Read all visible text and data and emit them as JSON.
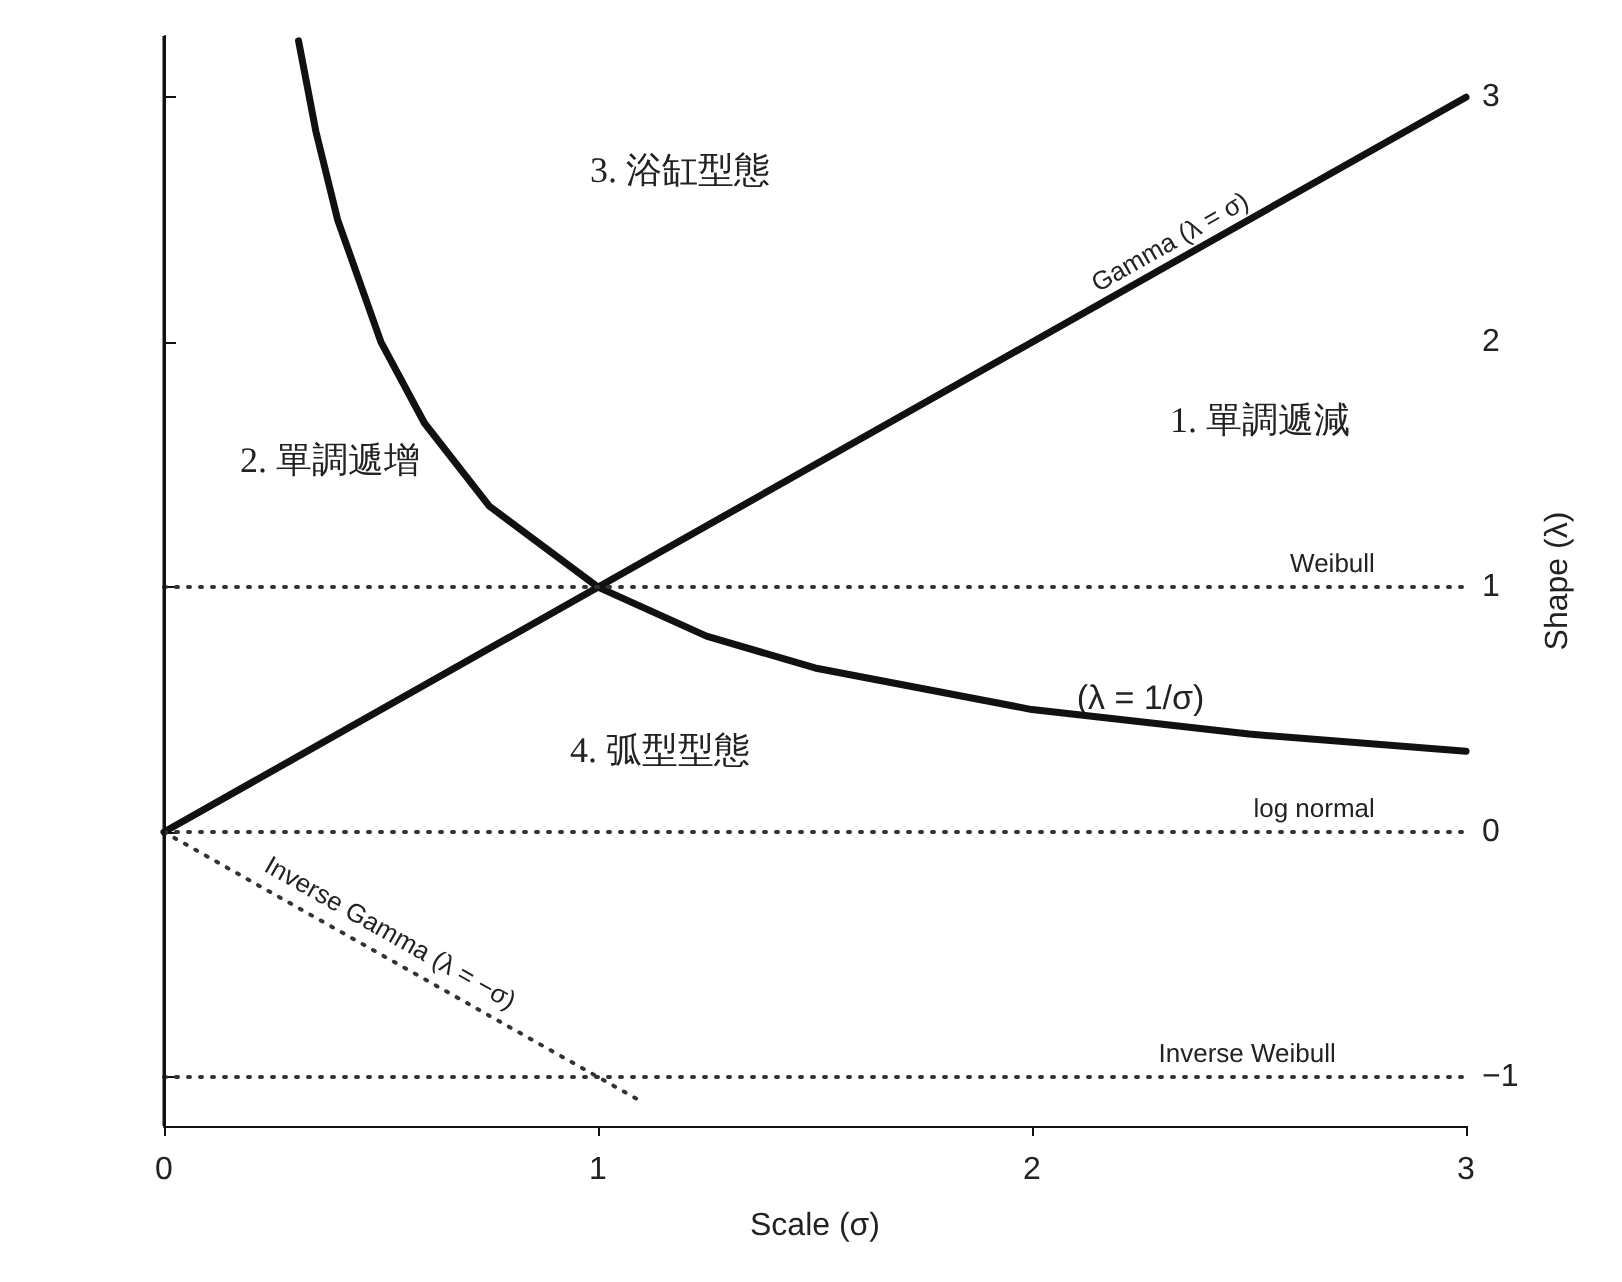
{
  "chart_data": {
    "type": "line",
    "xlabel": "Scale (σ)",
    "ylabel": "Shape (λ)",
    "xlim": [
      0,
      3
    ],
    "xticks": [
      0,
      1,
      2,
      3
    ],
    "ylim": [
      -1.2,
      3.25
    ],
    "yticks": [
      -1,
      0,
      1,
      2,
      3
    ],
    "grid": false,
    "legend": false,
    "marker": "none",
    "series": [
      {
        "name": "Gamma (λ = σ)",
        "color": "#111111",
        "line_style": "solid",
        "x": [
          0,
          3
        ],
        "values": [
          0,
          3
        ]
      },
      {
        "name": "(λ = 1/σ)",
        "color": "#111111",
        "line_style": "solid",
        "x": [
          0.31,
          0.35,
          0.4,
          0.5,
          0.6,
          0.75,
          1,
          1.25,
          1.5,
          2,
          2.5,
          3
        ],
        "values": [
          3.23,
          2.86,
          2.5,
          2,
          1.67,
          1.33,
          1,
          0.8,
          0.67,
          0.5,
          0.4,
          0.33
        ]
      },
      {
        "name": "Weibull",
        "color": "#333333",
        "line_style": "dotted",
        "x": [
          0,
          3
        ],
        "values": [
          1,
          1
        ]
      },
      {
        "name": "log normal",
        "color": "#333333",
        "line_style": "dotted",
        "x": [
          0,
          3
        ],
        "values": [
          0,
          0
        ]
      },
      {
        "name": "Inverse Weibull",
        "color": "#333333",
        "line_style": "dotted",
        "x": [
          0,
          3
        ],
        "values": [
          -1,
          -1
        ]
      },
      {
        "name": "Inverse Gamma (λ = −σ)",
        "color": "#333333",
        "line_style": "dotted",
        "x": [
          0,
          1.1
        ],
        "values": [
          0,
          -1.1
        ]
      }
    ],
    "ref_lines": [
      {
        "axis": "x",
        "value": 0,
        "color": "#111111",
        "line_style": "solid"
      }
    ],
    "annotations": [
      "3. 浴缸型態",
      "2. 單調遞增",
      "1. 單調遞減",
      "4. 弧型型態"
    ]
  }
}
